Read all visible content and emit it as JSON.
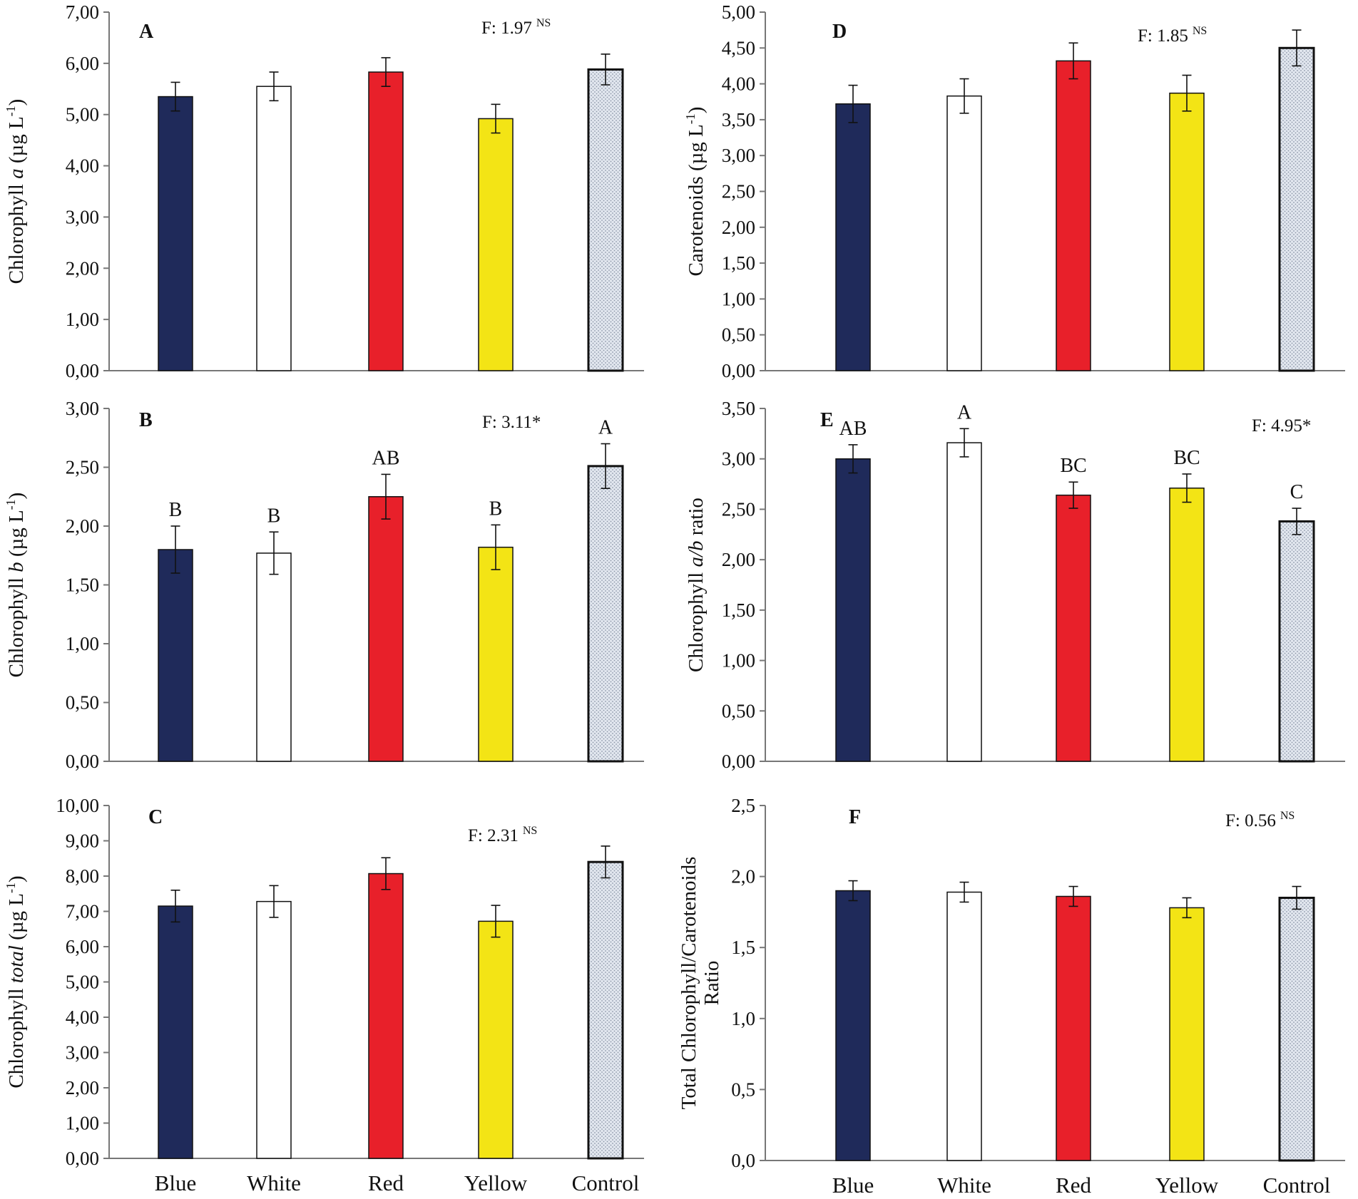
{
  "chart_data": [
    {
      "type": "bar",
      "panel": "A",
      "categories": [
        "Blue",
        "White",
        "Red",
        "Yellow",
        "Control"
      ],
      "values": [
        5.35,
        5.55,
        5.83,
        4.92,
        5.88
      ],
      "errors": [
        0.28,
        0.28,
        0.28,
        0.28,
        0.3
      ],
      "significance": [],
      "ylabel_prefix": "Chlorophyll ",
      "ylabel_italic": "a",
      "ylabel_unit": " (µg L",
      "ylabel_sup": "-1",
      "ylabel_close": ")",
      "ylim": [
        0,
        7
      ],
      "yticks": [
        "0,00",
        "1,00",
        "2,00",
        "3,00",
        "4,00",
        "5,00",
        "6,00",
        "7,00"
      ],
      "stat_text": "F: 1.97",
      "stat_sup": "NS",
      "show_xlabels": false,
      "grid": false
    },
    {
      "type": "bar",
      "panel": "B",
      "categories": [
        "Blue",
        "White",
        "Red",
        "Yellow",
        "Control"
      ],
      "values": [
        1.8,
        1.77,
        2.25,
        1.82,
        2.51
      ],
      "errors": [
        0.2,
        0.18,
        0.19,
        0.19,
        0.19
      ],
      "significance": [
        "B",
        "B",
        "AB",
        "B",
        "A"
      ],
      "ylabel_prefix": "Chlorophyll ",
      "ylabel_italic": "b",
      "ylabel_unit": " (µg L",
      "ylabel_sup": "-1",
      "ylabel_close": ")",
      "ylim": [
        0,
        3
      ],
      "yticks": [
        "0,00",
        "0,50",
        "1,00",
        "1,50",
        "2,00",
        "2,50",
        "3,00"
      ],
      "stat_text": "F: 3.11*",
      "stat_sup": "",
      "show_xlabels": false,
      "grid": false
    },
    {
      "type": "bar",
      "panel": "C",
      "categories": [
        "Blue",
        "White",
        "Red",
        "Yellow",
        "Control"
      ],
      "values": [
        7.15,
        7.28,
        8.07,
        6.72,
        8.4
      ],
      "errors": [
        0.45,
        0.45,
        0.45,
        0.45,
        0.45
      ],
      "significance": [],
      "ylabel_prefix": "Chlorophyll ",
      "ylabel_italic": "total",
      "ylabel_unit": " (µg L",
      "ylabel_sup": "-1",
      "ylabel_close": ")",
      "ylim": [
        0,
        10
      ],
      "yticks": [
        "0,00",
        "1,00",
        "2,00",
        "3,00",
        "4,00",
        "5,00",
        "6,00",
        "7,00",
        "8,00",
        "9,00",
        "10,00"
      ],
      "stat_text": "F: 2.31",
      "stat_sup": "NS",
      "show_xlabels": true,
      "grid": false
    },
    {
      "type": "bar",
      "panel": "D",
      "categories": [
        "Blue",
        "White",
        "Red",
        "Yellow",
        "Control"
      ],
      "values": [
        3.72,
        3.83,
        4.32,
        3.87,
        4.5
      ],
      "errors": [
        0.26,
        0.24,
        0.25,
        0.25,
        0.25
      ],
      "significance": [],
      "ylabel_prefix": "Carotenoids (µg L",
      "ylabel_italic": "",
      "ylabel_unit": "",
      "ylabel_sup": "-1",
      "ylabel_close": ")",
      "ylim": [
        0,
        5
      ],
      "yticks": [
        "0,00",
        "0,50",
        "1,00",
        "1,50",
        "2,00",
        "2,50",
        "3,00",
        "3,50",
        "4,00",
        "4,50",
        "5,00"
      ],
      "stat_text": "F: 1.85",
      "stat_sup": "NS",
      "show_xlabels": false,
      "grid": false
    },
    {
      "type": "bar",
      "panel": "E",
      "categories": [
        "Blue",
        "White",
        "Red",
        "Yellow",
        "Control"
      ],
      "values": [
        3.0,
        3.16,
        2.64,
        2.71,
        2.38
      ],
      "errors": [
        0.14,
        0.14,
        0.13,
        0.14,
        0.13
      ],
      "significance": [
        "AB",
        "A",
        "BC",
        "BC",
        "C"
      ],
      "ylabel_prefix": "Chlorophyll ",
      "ylabel_italic": "a/b",
      "ylabel_unit": " ratio",
      "ylabel_sup": "",
      "ylabel_close": "",
      "ylim": [
        0,
        3.5
      ],
      "yticks": [
        "0,00",
        "0,50",
        "1,00",
        "1,50",
        "2,00",
        "2,50",
        "3,00",
        "3,50"
      ],
      "stat_text": "F: 4.95*",
      "stat_sup": "",
      "show_xlabels": false,
      "grid": false
    },
    {
      "type": "bar",
      "panel": "F",
      "categories": [
        "Blue",
        "White",
        "Red",
        "Yellow",
        "Control"
      ],
      "values": [
        1.9,
        1.89,
        1.86,
        1.78,
        1.85
      ],
      "errors": [
        0.07,
        0.07,
        0.07,
        0.07,
        0.08
      ],
      "significance": [],
      "ylabel_line1": "Total Chlorophyll/Carotenoids",
      "ylabel_line2": "Ratio",
      "ylim": [
        0,
        2.5
      ],
      "yticks": [
        "0,0",
        "0,5",
        "1,0",
        "1,5",
        "2,0",
        "2,5"
      ],
      "stat_text": "F: 0.56",
      "stat_sup": "NS",
      "show_xlabels": true,
      "grid": false
    }
  ],
  "colors": {
    "Blue": "#1f2a5a",
    "White": "#ffffff",
    "Red": "#e8202a",
    "Yellow": "#f3e415",
    "Control": "#d9dee8"
  }
}
